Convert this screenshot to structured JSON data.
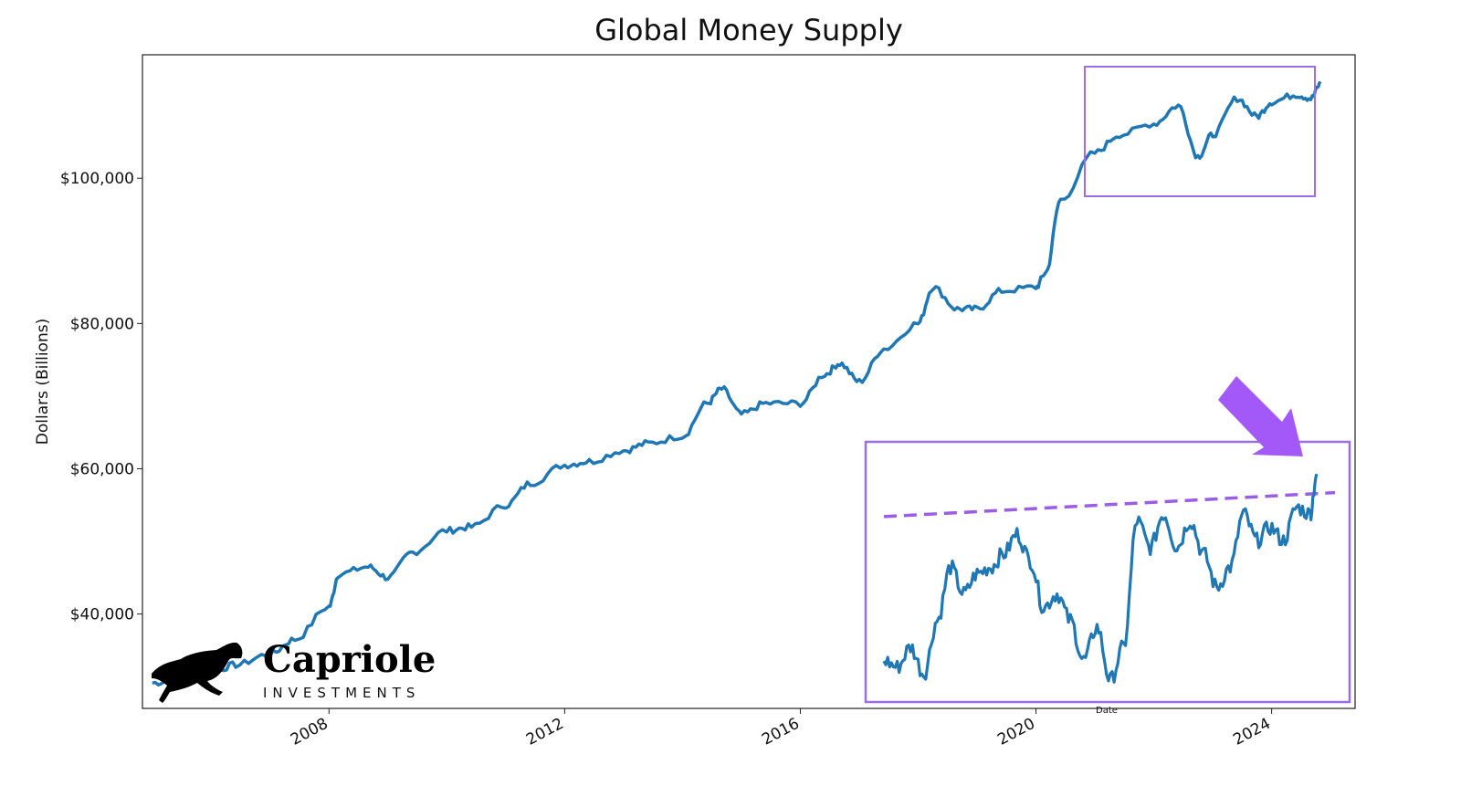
{
  "chart_data": {
    "type": "line",
    "title": "Global Money Supply",
    "xlabel": "Date",
    "ylabel": "Dollars (Billions)",
    "x_ticks": [
      "2008",
      "2012",
      "2016",
      "2020",
      "2024"
    ],
    "y_ticks": [
      "$40,000",
      "$60,000",
      "$80,000",
      "$100,000"
    ],
    "xlim": [
      "2004-11",
      "2025-06"
    ],
    "ylim": [
      27000,
      117000
    ],
    "series": [
      {
        "color": "#1f77b4",
        "x": [
          "2005-01",
          "2005-06",
          "2006-01",
          "2006-06",
          "2007-01",
          "2007-06",
          "2008-01",
          "2008-03",
          "2008-09",
          "2009-01",
          "2009-06",
          "2010-01",
          "2010-06",
          "2011-01",
          "2011-06",
          "2012-01",
          "2012-06",
          "2013-01",
          "2013-06",
          "2014-01",
          "2014-06",
          "2014-09",
          "2015-01",
          "2015-06",
          "2016-01",
          "2016-06",
          "2016-09",
          "2017-01",
          "2017-06",
          "2018-01",
          "2018-04",
          "2018-09",
          "2019-01",
          "2019-06",
          "2020-01",
          "2020-03",
          "2020-06",
          "2021-01",
          "2021-06",
          "2022-01",
          "2022-06",
          "2022-10",
          "2023-01",
          "2023-06",
          "2023-10",
          "2024-01",
          "2024-06",
          "2024-09",
          "2024-11"
        ],
        "values": [
          30500,
          31000,
          32000,
          33000,
          34500,
          36500,
          41000,
          45500,
          46500,
          45000,
          48500,
          51500,
          52000,
          55000,
          58000,
          60500,
          61000,
          62500,
          63500,
          64500,
          69000,
          71000,
          67500,
          69000,
          69000,
          73000,
          74500,
          72000,
          76500,
          80000,
          85000,
          82000,
          82000,
          84500,
          85000,
          87000,
          97000,
          103500,
          106000,
          107500,
          110000,
          103000,
          106000,
          111000,
          108500,
          110500,
          111500,
          111000,
          113000
        ]
      }
    ],
    "inset": {
      "x": [
        "2019-06",
        "2019-08",
        "2019-10",
        "2019-12",
        "2020-02",
        "2020-04",
        "2020-06",
        "2020-08",
        "2020-10",
        "2020-12",
        "2021-02",
        "2021-04",
        "2021-06",
        "2021-08",
        "2021-10",
        "2021-12",
        "2022-02",
        "2022-04",
        "2022-06",
        "2022-08",
        "2022-10",
        "2022-12",
        "2023-02",
        "2023-04",
        "2023-06",
        "2023-08",
        "2023-10",
        "2023-12",
        "2024-02",
        "2024-04",
        "2024-06",
        "2024-08",
        "2024-10",
        "2024-11"
      ],
      "values": [
        99000,
        98500,
        100000,
        98000,
        102000,
        106000,
        104000,
        105500,
        106000,
        107000,
        108500,
        106500,
        103000,
        104000,
        102000,
        99000,
        101500,
        97500,
        100000,
        109500,
        107500,
        110000,
        107500,
        109500,
        107000,
        104500,
        106000,
        110000,
        108000,
        109000,
        108000,
        110500,
        110000,
        113000
      ],
      "ylim": [
        96500,
        115000
      ],
      "trend": {
        "color": "#9b5de5",
        "start": 109800,
        "end": 111600
      }
    }
  },
  "annotations": {
    "box_color": "#9b6ee8",
    "arrow_color": "#a259f7"
  },
  "brand": {
    "name": "Capriole",
    "tagline": "INVESTMENTS"
  }
}
